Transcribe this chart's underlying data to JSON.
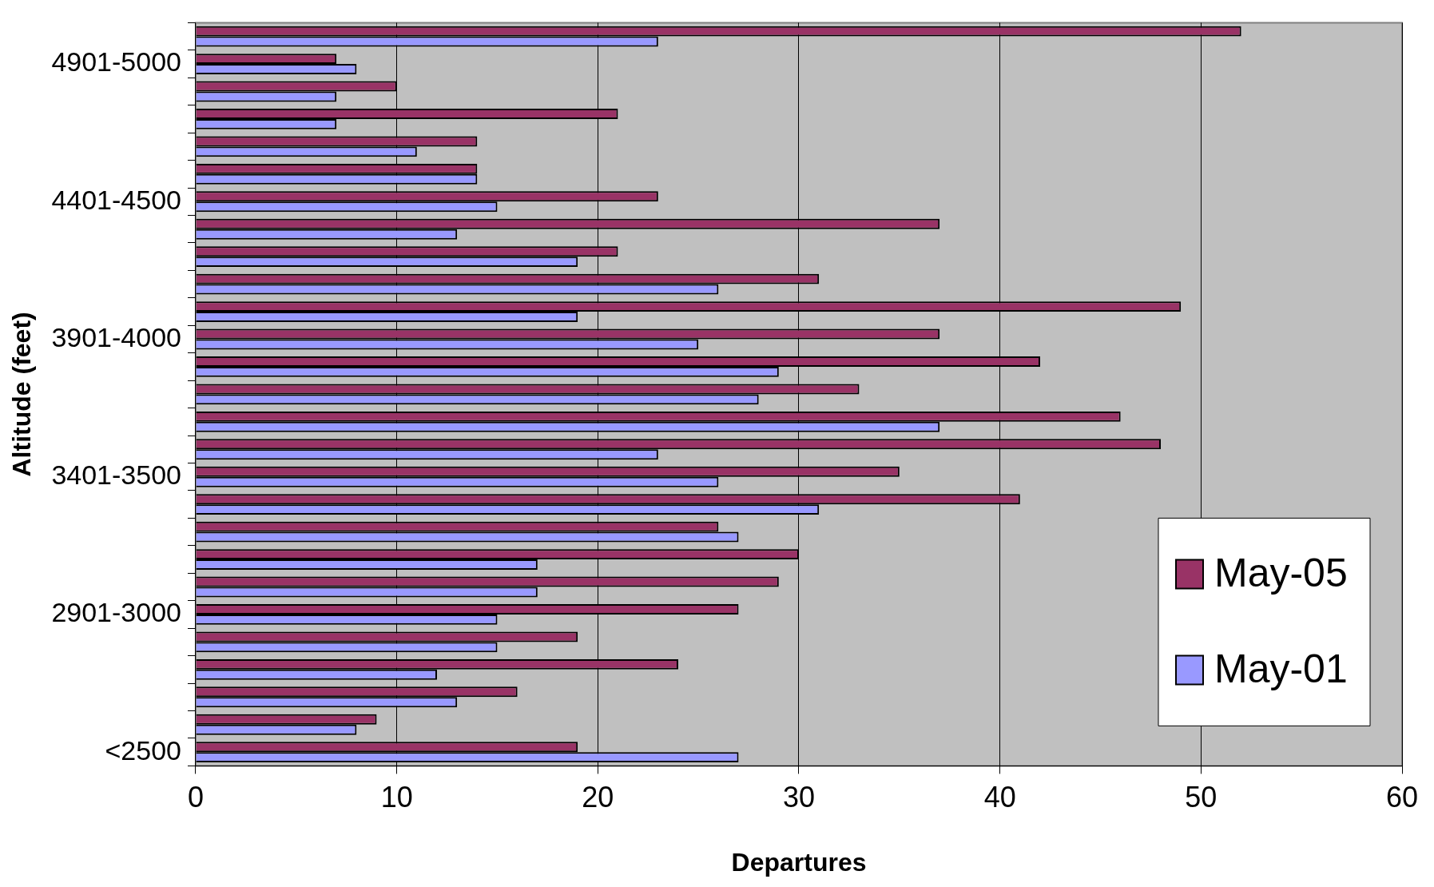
{
  "chart_data": {
    "type": "bar",
    "orientation": "horizontal",
    "xlabel": "Departures",
    "ylabel": "Altitude (feet)",
    "categories": [
      null,
      "4901-5000",
      null,
      null,
      null,
      null,
      "4401-4500",
      null,
      null,
      null,
      null,
      "3901-4000",
      null,
      null,
      null,
      null,
      "3401-3500",
      null,
      null,
      null,
      null,
      "2901-3000",
      null,
      null,
      null,
      null,
      "<2500"
    ],
    "series": [
      {
        "name": "May-05",
        "color": "#993366",
        "values": [
          52,
          7,
          10,
          21,
          14,
          14,
          23,
          37,
          21,
          31,
          49,
          37,
          42,
          33,
          46,
          48,
          35,
          41,
          26,
          30,
          29,
          27,
          19,
          24,
          16,
          9,
          19
        ]
      },
      {
        "name": "May-01",
        "color": "#9999ff",
        "values": [
          23,
          8,
          7,
          7,
          11,
          14,
          15,
          13,
          19,
          26,
          19,
          25,
          29,
          28,
          37,
          23,
          26,
          31,
          27,
          17,
          17,
          15,
          15,
          12,
          13,
          8,
          27
        ]
      }
    ],
    "xlim": [
      0,
      60
    ],
    "xticks": [
      0,
      10,
      20,
      30,
      40,
      50,
      60
    ],
    "grid": "x",
    "legend": "bottom right"
  }
}
